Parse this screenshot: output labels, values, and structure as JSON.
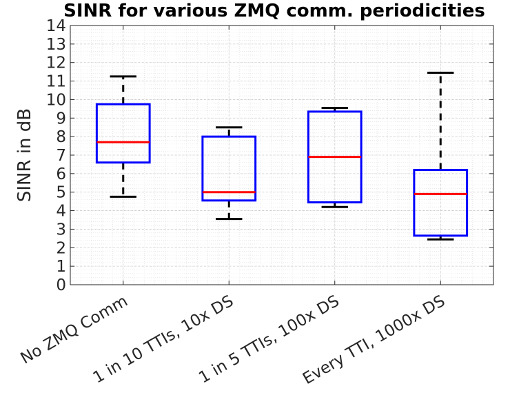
{
  "chart_data": {
    "type": "box",
    "title": "SINR for various ZMQ comm. periodicities",
    "xlabel": "",
    "ylabel": "SINR in dB",
    "ylim": [
      0,
      14
    ],
    "yticks": [
      "0",
      "1",
      "2",
      "3",
      "4",
      "5",
      "6",
      "7",
      "8",
      "9",
      "10",
      "11",
      "12",
      "13",
      "14"
    ],
    "grid": true,
    "minor_grid": true,
    "categories": [
      "No ZMQ Comm",
      "1 in 10 TTIs, 10x DS",
      "1 in 5 TTIs, 100x DS",
      "Every TTI, 1000x DS"
    ],
    "boxes": [
      {
        "min": 4.75,
        "q1": 6.6,
        "median": 7.7,
        "q3": 9.75,
        "max": 11.25
      },
      {
        "min": 3.55,
        "q1": 4.55,
        "median": 5.0,
        "q3": 8.0,
        "max": 8.5
      },
      {
        "min": 4.2,
        "q1": 4.45,
        "median": 6.9,
        "q3": 9.35,
        "max": 9.55
      },
      {
        "min": 2.45,
        "q1": 2.65,
        "median": 4.9,
        "q3": 6.2,
        "max": 11.45
      }
    ],
    "colors": {
      "box": "#0000ff",
      "median": "#ff0000",
      "whisker": "#000000",
      "grid": "#dcdcdc"
    }
  }
}
